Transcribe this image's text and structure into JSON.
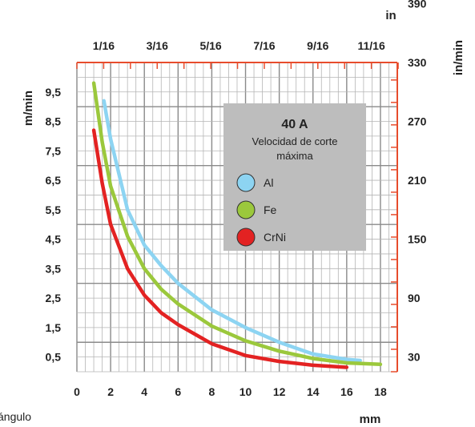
{
  "fragment_text": "ángulo",
  "chart_data": {
    "type": "line",
    "title": "40 A",
    "subtitle": "Velocidad de corte máxima",
    "x_bottom": {
      "label": "mm",
      "range": [
        0,
        19
      ],
      "ticks": [
        "0",
        "2",
        "4",
        "6",
        "8",
        "10",
        "12",
        "14",
        "16",
        "18"
      ],
      "tick_values": [
        0,
        2,
        4,
        6,
        8,
        10,
        12,
        14,
        16,
        18
      ]
    },
    "x_top": {
      "label": "in",
      "ticks": [
        "1/16",
        "3/16",
        "5/16",
        "7/16",
        "9/16",
        "11/16"
      ],
      "tick_values_mm": [
        1.5875,
        4.7625,
        7.9375,
        11.1125,
        14.2875,
        17.4625
      ]
    },
    "y_left": {
      "label": "m/min",
      "range": [
        0,
        10.5
      ],
      "ticks": [
        "0,5",
        "1,5",
        "2,5",
        "3,5",
        "4,5",
        "5,5",
        "6,5",
        "7,5",
        "8,5",
        "9,5"
      ],
      "tick_values": [
        0.5,
        1.5,
        2.5,
        3.5,
        4.5,
        5.5,
        6.5,
        7.5,
        8.5,
        9.5
      ]
    },
    "y_right": {
      "label": "in/min",
      "ticks": [
        "30",
        "90",
        "150",
        "210",
        "270",
        "330",
        "390"
      ],
      "tick_values_mmin": [
        0.5,
        2.5,
        4.5,
        6.5,
        8.5,
        10.5,
        12.5
      ]
    },
    "grid": true,
    "legend_position": "top-right",
    "series": [
      {
        "name": "Al",
        "color": "#8dd4f2",
        "x": [
          1.6,
          2,
          3,
          4,
          5,
          6,
          8,
          10,
          12,
          14,
          16,
          16.8
        ],
        "y": [
          9.2,
          7.9,
          5.5,
          4.3,
          3.6,
          3.0,
          2.1,
          1.5,
          1.0,
          0.6,
          0.42,
          0.38
        ]
      },
      {
        "name": "Fe",
        "color": "#9bc83c",
        "x": [
          1.0,
          1.5,
          2,
          3,
          4,
          5,
          6,
          8,
          10,
          12,
          14,
          16,
          18
        ],
        "y": [
          9.8,
          7.8,
          6.3,
          4.6,
          3.5,
          2.8,
          2.3,
          1.55,
          1.05,
          0.7,
          0.45,
          0.3,
          0.25
        ]
      },
      {
        "name": "CrNi",
        "color": "#e32222",
        "x": [
          1.0,
          1.5,
          2,
          3,
          4,
          5,
          6,
          8,
          10,
          12,
          14,
          16
        ],
        "y": [
          8.2,
          6.4,
          5.0,
          3.5,
          2.6,
          2.0,
          1.6,
          0.95,
          0.55,
          0.35,
          0.22,
          0.15
        ]
      }
    ]
  }
}
